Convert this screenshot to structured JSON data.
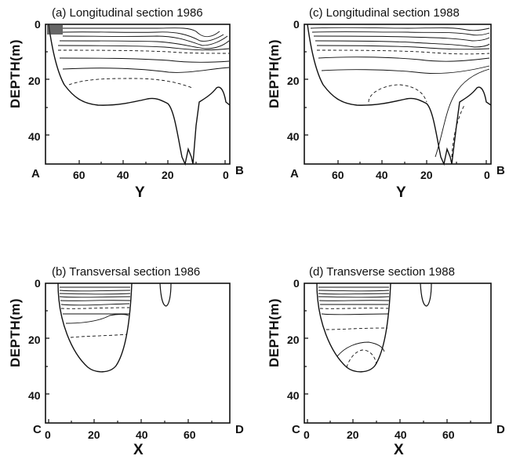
{
  "panels": {
    "a": {
      "title": "(a) Longitudinal section 1986",
      "ylabel": "DEPTH(m)",
      "xlabel": "Y",
      "yticks": [
        "0",
        "20",
        "40"
      ],
      "xticks": [
        "60",
        "40",
        "20",
        "0"
      ],
      "left_end": "A",
      "right_end": "B"
    },
    "c": {
      "title": "(c) Longitudinal section 1988",
      "ylabel": "DEPTH(m)",
      "xlabel": "Y",
      "yticks": [
        "0",
        "20",
        "40"
      ],
      "xticks": [
        "60",
        "40",
        "20",
        "0"
      ],
      "left_end": "A",
      "right_end": "B"
    },
    "b": {
      "title": "(b) Transversal section 1986",
      "ylabel": "DEPTH(m)",
      "xlabel": "X",
      "yticks": [
        "0",
        "20",
        "40"
      ],
      "xticks": [
        "0",
        "20",
        "40",
        "60"
      ],
      "left_end": "C",
      "right_end": "D"
    },
    "d": {
      "title": "(d) Transverse section 1988",
      "ylabel": "DEPTH(m)",
      "xlabel": "X",
      "yticks": [
        "0",
        "20",
        "40"
      ],
      "xticks": [
        "0",
        "20",
        "40",
        "60"
      ],
      "left_end": "C",
      "right_end": "D"
    }
  },
  "line_color": "#111111"
}
